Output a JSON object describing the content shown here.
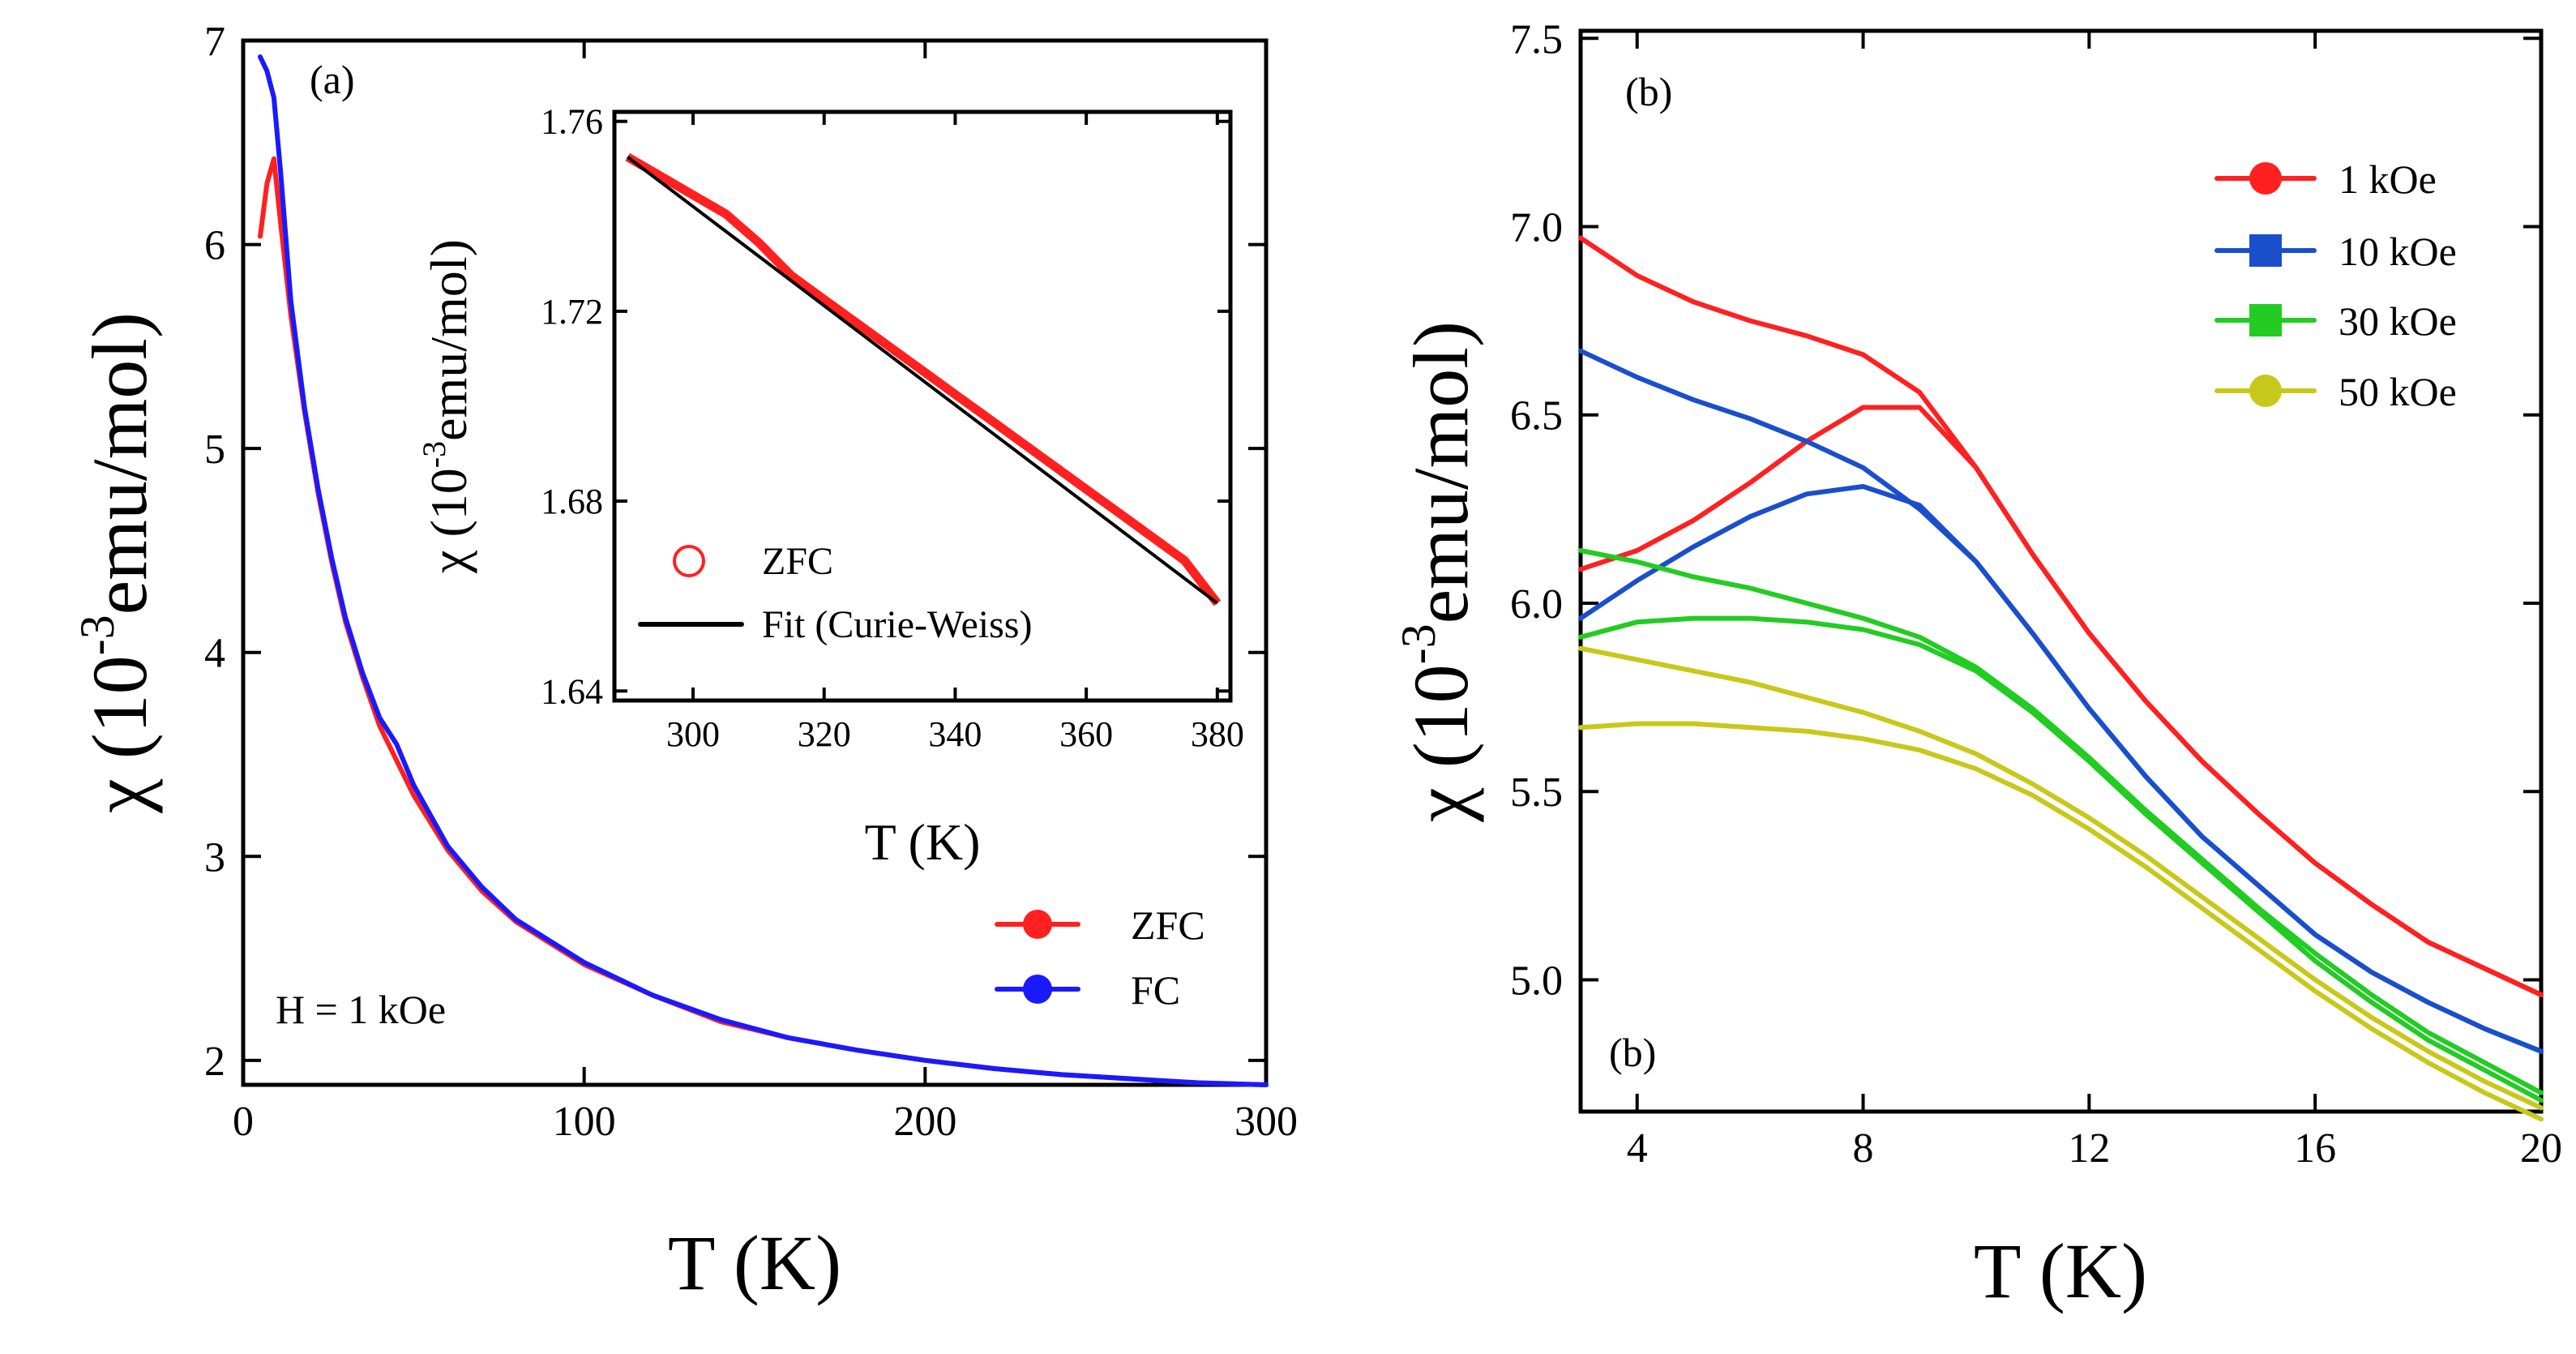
{
  "chart_data": [
    {
      "id": "a",
      "type": "line",
      "panel_label": "(a)",
      "xlabel": "T (K)",
      "ylabel": "χ (10⁻³emu/mol)",
      "ylabel_parts": {
        "symbol": "χ",
        "open": "(10",
        "exponent": "-3",
        "unit": "emu/mol)"
      },
      "xlim": [
        0,
        300
      ],
      "ylim": [
        1.88,
        7.0
      ],
      "xticks": [
        0,
        100,
        200,
        300
      ],
      "xtick_labels": [
        "0",
        "100",
        "200",
        "300"
      ],
      "yticks": [
        2,
        3,
        4,
        5,
        6,
        7
      ],
      "ytick_labels": [
        "2",
        "3",
        "4",
        "5",
        "6",
        "7"
      ],
      "annotation": "H = 1 kOe",
      "legend_position": "bottom-right",
      "series": [
        {
          "name": "ZFC",
          "color": "#ff2020",
          "x": [
            5,
            7,
            9,
            11,
            14,
            18,
            22,
            26,
            30,
            35,
            40,
            45,
            50,
            60,
            70,
            80,
            100,
            120,
            140,
            160,
            180,
            200,
            220,
            240,
            260,
            280,
            300
          ],
          "y": [
            6.04,
            6.3,
            6.42,
            6.1,
            5.65,
            5.18,
            4.78,
            4.44,
            4.15,
            3.88,
            3.64,
            3.47,
            3.3,
            3.03,
            2.83,
            2.68,
            2.47,
            2.32,
            2.19,
            2.11,
            2.05,
            2.0,
            1.96,
            1.93,
            1.91,
            1.89,
            1.88
          ]
        },
        {
          "name": "FC",
          "color": "#1a1aff",
          "x": [
            5,
            7,
            9,
            11,
            14,
            18,
            22,
            26,
            30,
            35,
            40,
            45,
            50,
            60,
            70,
            80,
            100,
            120,
            140,
            160,
            180,
            200,
            220,
            240,
            260,
            280,
            300
          ],
          "y": [
            6.92,
            6.85,
            6.72,
            6.35,
            5.72,
            5.2,
            4.8,
            4.46,
            4.17,
            3.9,
            3.68,
            3.55,
            3.35,
            3.05,
            2.85,
            2.69,
            2.48,
            2.32,
            2.2,
            2.11,
            2.05,
            2.0,
            1.96,
            1.93,
            1.91,
            1.89,
            1.88
          ]
        }
      ]
    },
    {
      "id": "inset",
      "type": "scatter",
      "xlabel": "T (K)",
      "ylabel": "χ (10⁻³emu/mol)",
      "ylabel_parts": {
        "symbol": "χ",
        "open": "(10",
        "exponent": "-3",
        "unit": "emu/mol)"
      },
      "xlim": [
        288,
        382
      ],
      "ylim": [
        1.638,
        1.762
      ],
      "xticks": [
        300,
        320,
        340,
        360,
        380
      ],
      "xtick_labels": [
        "300",
        "320",
        "340",
        "360",
        "380"
      ],
      "yticks": [
        1.64,
        1.68,
        1.72,
        1.76
      ],
      "ytick_labels": [
        "1.64",
        "1.68",
        "1.72",
        "1.76"
      ],
      "legend_position": "bottom-left",
      "series": [
        {
          "name": "ZFC",
          "color": "#ff2020",
          "marker": "open-circle",
          "x": [
            290,
            295,
            300,
            305,
            310,
            315,
            320,
            325,
            330,
            335,
            340,
            345,
            350,
            355,
            360,
            365,
            370,
            375,
            380
          ],
          "y": [
            1.7525,
            1.7485,
            1.7445,
            1.7405,
            1.7345,
            1.7275,
            1.7225,
            1.7175,
            1.7125,
            1.7075,
            1.7025,
            1.6975,
            1.6925,
            1.6875,
            1.6825,
            1.6775,
            1.6725,
            1.6675,
            1.6585
          ]
        },
        {
          "name": "Fit (Curie-Weiss)",
          "color": "#000000",
          "marker": "line",
          "x": [
            290,
            380
          ],
          "y": [
            1.7525,
            1.6585
          ]
        }
      ]
    },
    {
      "id": "b",
      "type": "line",
      "panel_label": "(b)",
      "panel_label_lower": "(b)",
      "xlabel": "T (K)",
      "ylabel": "χ (10⁻³emu/mol)",
      "ylabel_parts": {
        "symbol": "χ",
        "open": "(10",
        "exponent": "-3",
        "unit": "emu/mol)"
      },
      "xlim": [
        3,
        20
      ],
      "ylim": [
        4.65,
        7.52
      ],
      "xticks": [
        4,
        8,
        12,
        16,
        20
      ],
      "xtick_labels": [
        "4",
        "8",
        "12",
        "16",
        "20"
      ],
      "yticks": [
        5.0,
        5.5,
        6.0,
        6.5,
        7.0,
        7.5
      ],
      "ytick_labels": [
        "5.0",
        "5.5",
        "6.0",
        "6.5",
        "7.0",
        "7.5"
      ],
      "legend_position": "top-right",
      "series": [
        {
          "name": "1 kOe",
          "color": "#ff2020",
          "marker": "circle",
          "x": [
            3,
            4,
            5,
            6,
            7,
            8,
            9,
            10,
            11,
            12,
            13,
            14,
            15,
            16,
            17,
            18,
            19,
            20
          ],
          "y_upper": [
            6.97,
            6.87,
            6.8,
            6.75,
            6.71,
            6.66,
            6.56,
            6.36,
            6.13,
            5.92,
            5.74,
            5.58,
            5.44,
            5.31,
            5.2,
            5.1,
            5.03,
            4.96
          ],
          "y_lower": [
            6.09,
            6.14,
            6.22,
            6.32,
            6.43,
            6.52,
            6.52,
            6.36,
            6.13,
            5.92,
            5.74,
            5.58,
            5.44,
            5.31,
            5.2,
            5.1,
            5.03,
            4.96
          ]
        },
        {
          "name": "10 kOe",
          "color": "#1a4fcc",
          "marker": "square",
          "x": [
            3,
            4,
            5,
            6,
            7,
            8,
            9,
            10,
            11,
            12,
            13,
            14,
            15,
            16,
            17,
            18,
            19,
            20
          ],
          "y_upper": [
            6.67,
            6.6,
            6.54,
            6.49,
            6.43,
            6.36,
            6.25,
            6.11,
            5.92,
            5.72,
            5.54,
            5.38,
            5.25,
            5.12,
            5.02,
            4.94,
            4.87,
            4.81
          ],
          "y_lower": [
            5.96,
            6.06,
            6.15,
            6.23,
            6.29,
            6.31,
            6.26,
            6.11,
            5.92,
            5.72,
            5.54,
            5.38,
            5.25,
            5.12,
            5.02,
            4.94,
            4.87,
            4.81
          ]
        },
        {
          "name": "30 kOe",
          "color": "#22cc22",
          "marker": "square",
          "x": [
            3,
            4,
            5,
            6,
            7,
            8,
            9,
            10,
            11,
            12,
            13,
            14,
            15,
            16,
            17,
            18,
            19,
            20
          ],
          "y_upper": [
            6.14,
            6.11,
            6.07,
            6.04,
            6.0,
            5.96,
            5.91,
            5.83,
            5.72,
            5.59,
            5.45,
            5.32,
            5.19,
            5.07,
            4.96,
            4.86,
            4.78,
            4.7
          ],
          "y_lower": [
            5.91,
            5.95,
            5.96,
            5.96,
            5.95,
            5.93,
            5.89,
            5.82,
            5.71,
            5.58,
            5.44,
            5.31,
            5.18,
            5.05,
            4.94,
            4.84,
            4.76,
            4.68
          ]
        },
        {
          "name": "50 kOe",
          "color": "#c8c81a",
          "marker": "circle",
          "x": [
            3,
            4,
            5,
            6,
            7,
            8,
            9,
            10,
            11,
            12,
            13,
            14,
            15,
            16,
            17,
            18,
            19,
            20
          ],
          "y_upper": [
            5.88,
            5.85,
            5.82,
            5.79,
            5.75,
            5.71,
            5.66,
            5.6,
            5.52,
            5.43,
            5.33,
            5.22,
            5.11,
            5.0,
            4.9,
            4.81,
            4.73,
            4.66
          ],
          "y_lower": [
            5.67,
            5.68,
            5.68,
            5.67,
            5.66,
            5.64,
            5.61,
            5.56,
            5.49,
            5.4,
            5.3,
            5.19,
            5.08,
            4.97,
            4.87,
            4.78,
            4.7,
            4.63
          ]
        }
      ]
    }
  ]
}
